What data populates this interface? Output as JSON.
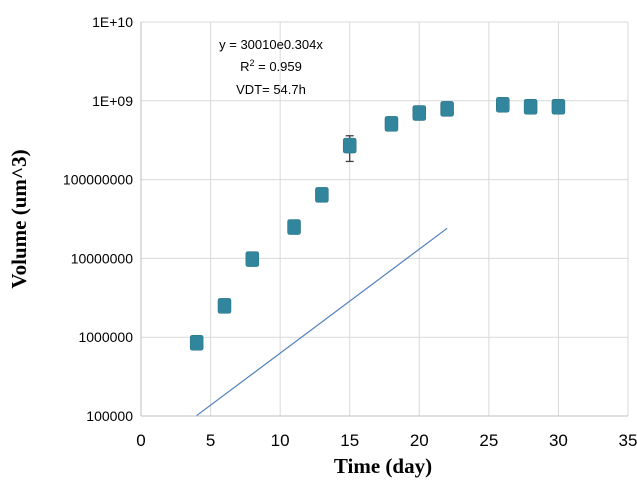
{
  "chart_data": {
    "type": "scatter",
    "title": "",
    "xlabel": "Time (day)",
    "ylabel": "Volume (um^3)",
    "xlim": [
      0,
      35
    ],
    "ylim": [
      100000,
      10000000000
    ],
    "yscale": "log",
    "grid": true,
    "x_ticks": [
      "0",
      "5",
      "10",
      "15",
      "20",
      "25",
      "30",
      "35"
    ],
    "y_ticks": [
      "100000",
      "1000000",
      "10000000",
      "100000000",
      "1E+09",
      "1E+10"
    ],
    "series": [
      {
        "color": "#31859c",
        "marker": "square",
        "points": [
          {
            "x": 4,
            "y": 850000
          },
          {
            "x": 6,
            "y": 2500000
          },
          {
            "x": 8,
            "y": 9800000
          },
          {
            "x": 11,
            "y": 25000000
          },
          {
            "x": 13,
            "y": 64000000
          },
          {
            "x": 15,
            "y": 270000000,
            "err_low": 170000000,
            "err_high": 360000000
          },
          {
            "x": 18,
            "y": 510000000
          },
          {
            "x": 20,
            "y": 700000000
          },
          {
            "x": 22,
            "y": 790000000
          },
          {
            "x": 26,
            "y": 890000000
          },
          {
            "x": 28,
            "y": 840000000
          },
          {
            "x": 30,
            "y": 840000000
          }
        ]
      }
    ],
    "trendline": {
      "type": "exponential",
      "a": 30010,
      "b": 0.304,
      "x_range": [
        4,
        22
      ],
      "color": "#4f81bd"
    },
    "annotations": {
      "equation": "y = 30010e0.304x",
      "r2_base": "R",
      "r2_sup": "2",
      "r2_rest": " = 0.959",
      "vdt": "VDT= 54.7h"
    }
  }
}
